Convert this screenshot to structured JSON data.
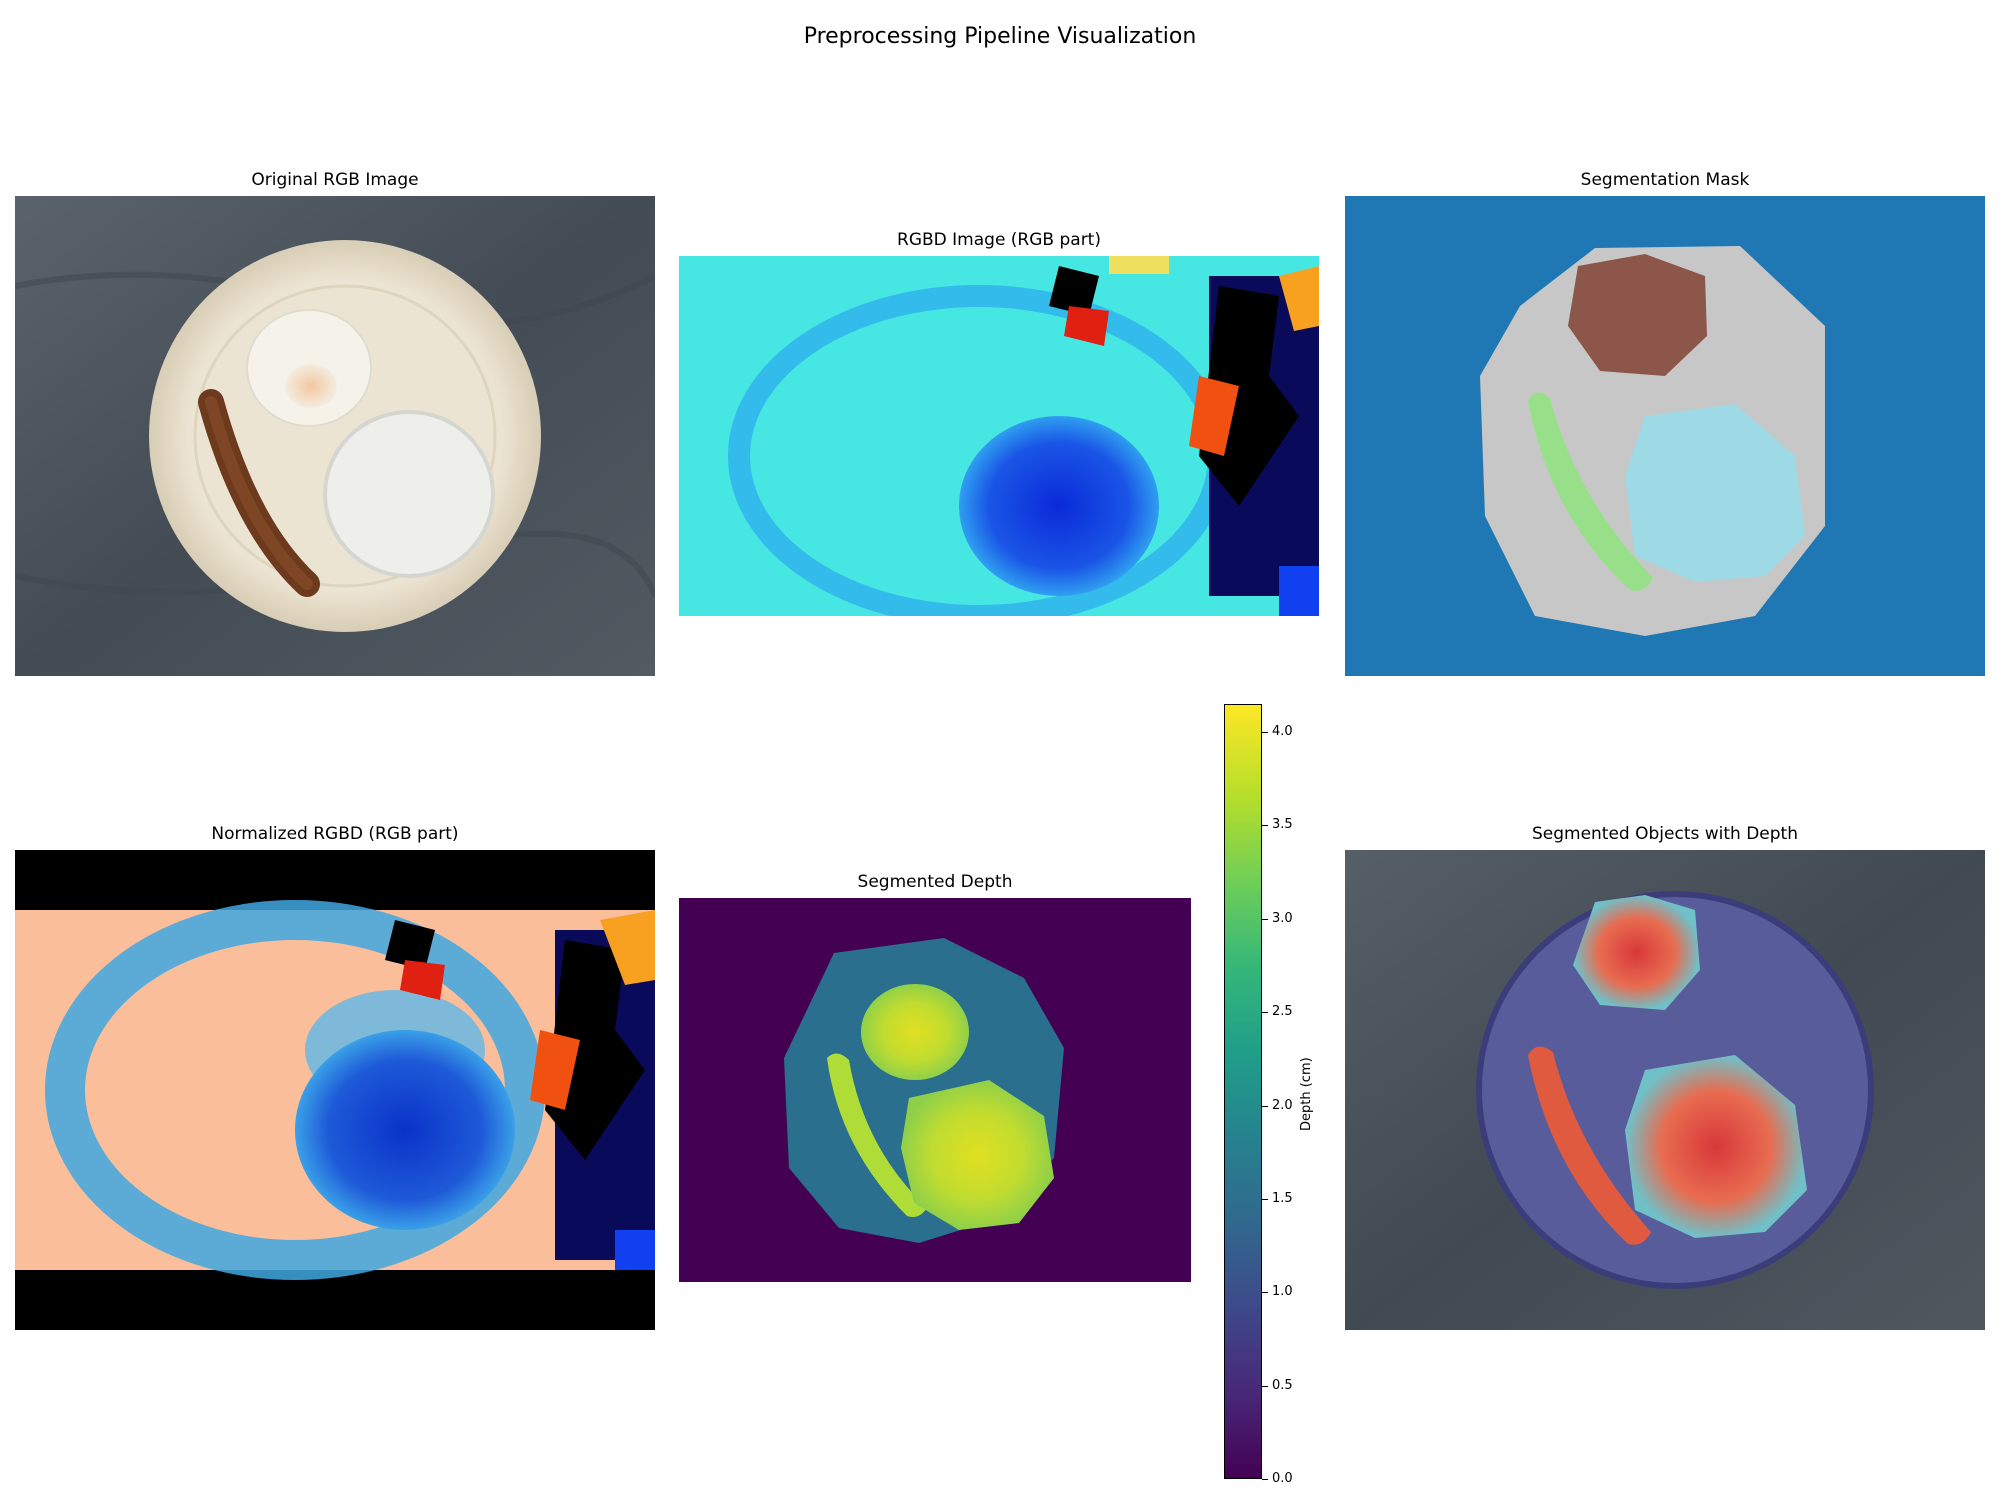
{
  "figure_title": "Preprocessing Pipeline Visualization",
  "panels": {
    "original_rgb": {
      "title": "Original RGB Image"
    },
    "rgbd_rgb": {
      "title": "RGBD Image (RGB part)"
    },
    "segmentation_mask": {
      "title": "Segmentation Mask"
    },
    "normalized_rgbd": {
      "title": "Normalized RGBD (RGB part)"
    },
    "segmented_depth": {
      "title": "Segmented Depth"
    },
    "segmented_objects_depth": {
      "title": "Segmented Objects with Depth"
    }
  },
  "colorbar": {
    "label": "Depth (cm)",
    "ticks": [
      "0.0",
      "0.5",
      "1.0",
      "1.5",
      "2.0",
      "2.5",
      "3.0",
      "3.5",
      "4.0"
    ],
    "tick_values": [
      0.0,
      0.5,
      1.0,
      1.5,
      2.0,
      2.5,
      3.0,
      3.5,
      4.0
    ],
    "range": [
      0.0,
      4.15
    ],
    "colormap": "viridis"
  },
  "colors": {
    "background_cloth": "#4a535c",
    "plate": "#e6dcc8",
    "mask_background": "#1f77b4",
    "mask_plate": "#c7c7c7",
    "mask_egg": "#8c564b",
    "mask_sausage": "#98df8a",
    "mask_rice": "#9edae5",
    "depth_background": "#440154",
    "depth_plate": "#2a6f8e",
    "depth_food": "#c8e020"
  }
}
